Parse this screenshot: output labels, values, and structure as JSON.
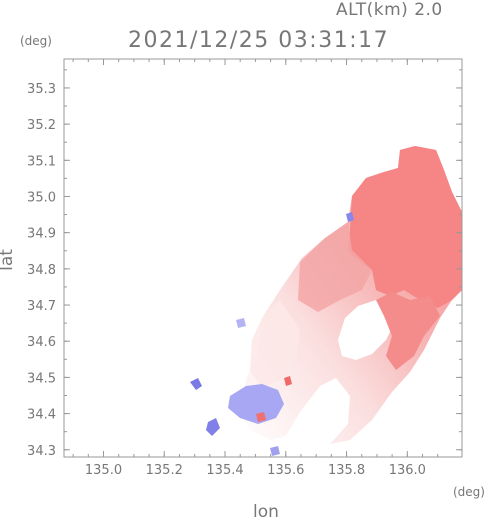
{
  "header": {
    "altitude": "ALT(km) 2.0",
    "timestamp": "2021/12/25 03:31:17"
  },
  "axes": {
    "x_title": "lon",
    "y_title": "lat",
    "x_unit": "(deg)",
    "y_unit": "(deg)",
    "x_ticks": [
      {
        "value": 135.0,
        "label": "135.0"
      },
      {
        "value": 135.2,
        "label": "135.2"
      },
      {
        "value": 135.4,
        "label": "135.4"
      },
      {
        "value": 135.6,
        "label": "135.6"
      },
      {
        "value": 135.8,
        "label": "135.8"
      },
      {
        "value": 136.0,
        "label": "136.0"
      }
    ],
    "y_ticks": [
      {
        "value": 34.3,
        "label": "34.3"
      },
      {
        "value": 34.4,
        "label": "34.4"
      },
      {
        "value": 34.5,
        "label": "34.5"
      },
      {
        "value": 34.6,
        "label": "34.6"
      },
      {
        "value": 34.7,
        "label": "34.7"
      },
      {
        "value": 34.8,
        "label": "34.8"
      },
      {
        "value": 34.9,
        "label": "34.9"
      },
      {
        "value": 35.0,
        "label": "35.0"
      },
      {
        "value": 35.1,
        "label": "35.1"
      },
      {
        "value": 35.2,
        "label": "35.2"
      },
      {
        "value": 35.3,
        "label": "35.3"
      }
    ],
    "x_range": [
      134.87,
      136.18
    ],
    "y_range": [
      34.28,
      35.38
    ]
  },
  "colors": {
    "axis": "#999999",
    "strong_approach": "#f78a8a",
    "medium_approach": "#f4b4b4",
    "weak_approach": "#fbe0e0",
    "receding": "#a8a8f2",
    "strong_receding": "#6f6fe0"
  }
}
